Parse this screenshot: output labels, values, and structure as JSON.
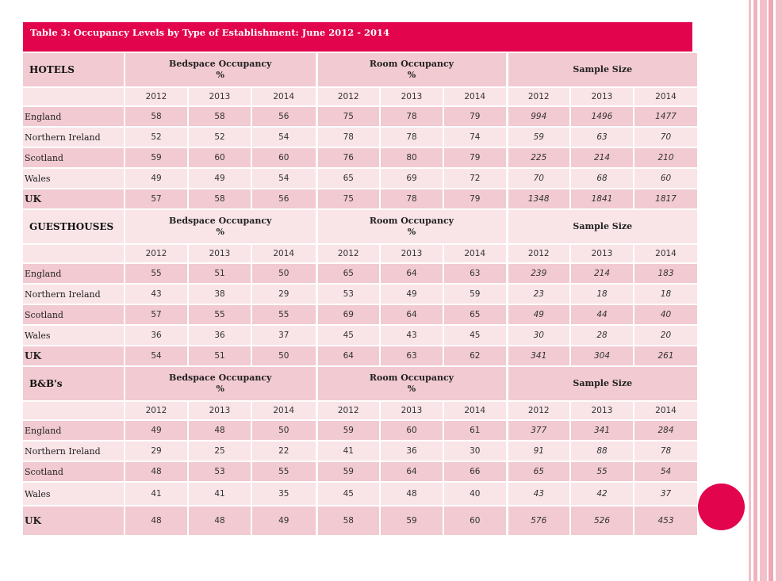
{
  "colors": {
    "accent": "#e2044c",
    "row_dark": "#f2cad1",
    "row_light": "#f9e4e8",
    "stripe_pink": "#f0b1be"
  },
  "title": "Table 3: Occupancy Levels by Type of Establishment:  June 2012 - 2014",
  "groups": {
    "bedspace": "Bedspace Occupancy",
    "room": "Room Occupancy",
    "percent": "%",
    "sample": "Sample Size"
  },
  "years": [
    "2012",
    "2013",
    "2014"
  ],
  "sections": [
    {
      "name": "HOTELS",
      "rows": [
        {
          "label": "England",
          "bed": [
            "58",
            "58",
            "56"
          ],
          "room": [
            "75",
            "78",
            "79"
          ],
          "sample": [
            "994",
            "1496",
            "1477"
          ]
        },
        {
          "label": "Northern Ireland",
          "bed": [
            "52",
            "52",
            "54"
          ],
          "room": [
            "78",
            "78",
            "74"
          ],
          "sample": [
            "59",
            "63",
            "70"
          ]
        },
        {
          "label": "Scotland",
          "bed": [
            "59",
            "60",
            "60"
          ],
          "room": [
            "76",
            "80",
            "79"
          ],
          "sample": [
            "225",
            "214",
            "210"
          ]
        },
        {
          "label": "Wales",
          "bed": [
            "49",
            "49",
            "54"
          ],
          "room": [
            "65",
            "69",
            "72"
          ],
          "sample": [
            "70",
            "68",
            "60"
          ]
        },
        {
          "label": "UK",
          "bed": [
            "57",
            "58",
            "56"
          ],
          "room": [
            "75",
            "78",
            "79"
          ],
          "sample": [
            "1348",
            "1841",
            "1817"
          ]
        }
      ]
    },
    {
      "name": "GUESTHOUSES",
      "rows": [
        {
          "label": "England",
          "bed": [
            "55",
            "51",
            "50"
          ],
          "room": [
            "65",
            "64",
            "63"
          ],
          "sample": [
            "239",
            "214",
            "183"
          ]
        },
        {
          "label": "Northern Ireland",
          "bed": [
            "43",
            "38",
            "29"
          ],
          "room": [
            "53",
            "49",
            "59"
          ],
          "sample": [
            "23",
            "18",
            "18"
          ]
        },
        {
          "label": "Scotland",
          "bed": [
            "57",
            "55",
            "55"
          ],
          "room": [
            "69",
            "64",
            "65"
          ],
          "sample": [
            "49",
            "44",
            "40"
          ]
        },
        {
          "label": "Wales",
          "bed": [
            "36",
            "36",
            "37"
          ],
          "room": [
            "45",
            "43",
            "45"
          ],
          "sample": [
            "30",
            "28",
            "20"
          ]
        },
        {
          "label": "UK",
          "bed": [
            "54",
            "51",
            "50"
          ],
          "room": [
            "64",
            "63",
            "62"
          ],
          "sample": [
            "341",
            "304",
            "261"
          ]
        }
      ]
    },
    {
      "name": "B&B's",
      "rows": [
        {
          "label": "England",
          "bed": [
            "49",
            "48",
            "50"
          ],
          "room": [
            "59",
            "60",
            "61"
          ],
          "sample": [
            "377",
            "341",
            "284"
          ]
        },
        {
          "label": "Northern Ireland",
          "bed": [
            "29",
            "25",
            "22"
          ],
          "room": [
            "41",
            "36",
            "30"
          ],
          "sample": [
            "91",
            "88",
            "78"
          ]
        },
        {
          "label": "Scotland",
          "bed": [
            "48",
            "53",
            "55"
          ],
          "room": [
            "59",
            "64",
            "66"
          ],
          "sample": [
            "65",
            "55",
            "54"
          ]
        },
        {
          "label": "Wales",
          "bed": [
            "41",
            "41",
            "35"
          ],
          "room": [
            "45",
            "48",
            "40"
          ],
          "sample": [
            "43",
            "42",
            "37"
          ]
        },
        {
          "label": "UK",
          "bed": [
            "48",
            "48",
            "49"
          ],
          "room": [
            "58",
            "59",
            "60"
          ],
          "sample": [
            "576",
            "526",
            "453"
          ]
        }
      ]
    }
  ]
}
